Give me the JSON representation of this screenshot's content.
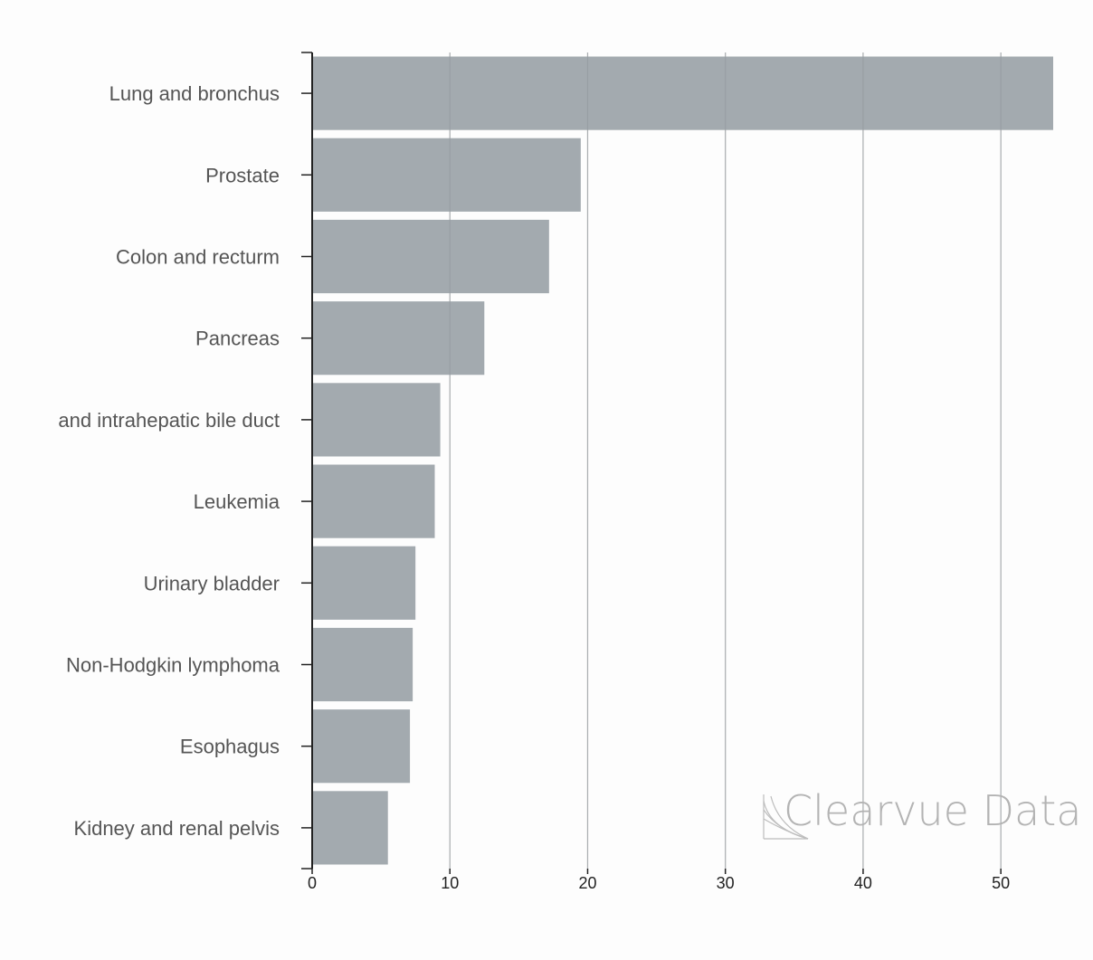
{
  "chart_data": {
    "type": "bar",
    "orientation": "horizontal",
    "categories": [
      "Lung and bronchus",
      "Prostate",
      "Colon and recturm",
      "Pancreas",
      "and intrahepatic bile duct",
      "Leukemia",
      "Urinary bladder",
      "Non-Hodgkin lymphoma",
      "Esophagus",
      "Kidney and renal pelvis"
    ],
    "values": [
      53.8,
      19.5,
      17.2,
      12.5,
      9.3,
      8.9,
      7.5,
      7.3,
      7.1,
      5.5
    ],
    "xlim": [
      0,
      53.8
    ],
    "xticks": [
      0,
      10,
      20,
      30,
      40,
      50
    ],
    "grid": "vertical",
    "title": "",
    "xlabel": "",
    "ylabel": "",
    "bar_color": "#a3aaaf"
  },
  "watermark": {
    "text": "Clearvue Data",
    "color": "#b3b3b3"
  }
}
